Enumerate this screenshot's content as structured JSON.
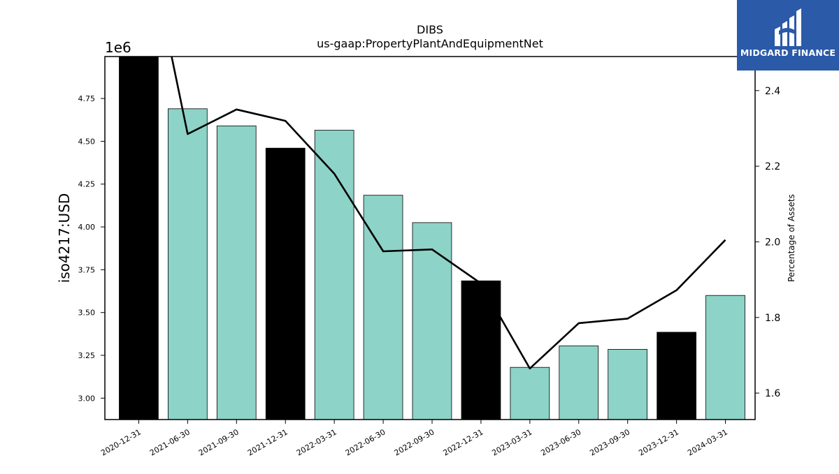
{
  "chart_data": {
    "type": "bar",
    "title": "DIBS",
    "subtitle": "us-gaap:PropertyPlantAndEquipmentNet",
    "ylabel": "iso4217:USD",
    "y_offset_label": "1e6",
    "y2label": "Percentage of Assets",
    "categories": [
      "2020-12-31",
      "2021-06-30",
      "2021-09-30",
      "2021-12-31",
      "2022-03-31",
      "2022-06-30",
      "2022-09-30",
      "2022-12-31",
      "2023-03-31",
      "2023-06-30",
      "2023-09-30",
      "2023-12-31",
      "2024-03-31"
    ],
    "series": [
      {
        "type": "bar",
        "values": [
          5000000,
          4690000,
          4590000,
          4460000,
          4565000,
          4185000,
          4025000,
          3685000,
          3180000,
          3305000,
          3285000,
          3385000,
          3600000
        ],
        "highlight": [
          true,
          false,
          false,
          true,
          false,
          false,
          false,
          true,
          false,
          false,
          false,
          true,
          false
        ]
      },
      {
        "type": "line",
        "axis": "right",
        "values": [
          2.91,
          2.285,
          2.35,
          2.32,
          2.18,
          1.975,
          1.98,
          1.89,
          1.665,
          1.785,
          1.797,
          1.872,
          2.005
        ]
      }
    ],
    "ylim": [
      2875000,
      4995000
    ],
    "yticks": [
      "3.00",
      "3.25",
      "3.50",
      "3.75",
      "4.00",
      "4.25",
      "4.50",
      "4.75"
    ],
    "ytick_values": [
      3000000,
      3250000,
      3500000,
      3750000,
      4000000,
      4250000,
      4500000,
      4750000
    ],
    "y2lim": [
      1.53,
      2.49
    ],
    "y2ticks": [
      "1.6",
      "1.8",
      "2.0",
      "2.2",
      "2.4"
    ],
    "y2tick_values": [
      1.6,
      1.8,
      2.0,
      2.2,
      2.4
    ],
    "colors": {
      "bar": "#8dd3c7",
      "bar_highlight": "#000000",
      "line": "#000000",
      "edge": "#000000"
    },
    "grid": false,
    "legend": "none"
  },
  "logo": {
    "text": "MIDGARD FINANCE",
    "background": "#2a5aa8",
    "foreground": "#ffffff"
  }
}
